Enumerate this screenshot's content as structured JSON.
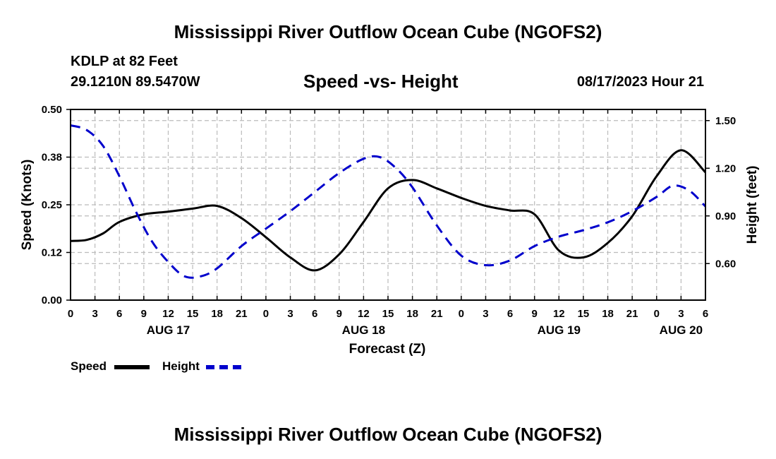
{
  "header": {
    "title": "Mississippi River Outflow Ocean Cube (NGOFS2)",
    "station": "KDLP at 82 Feet",
    "coordinates": "29.1210N  89.5470W",
    "subtitle": "Speed -vs- Height",
    "timestamp": "08/17/2023 Hour 21"
  },
  "footer": {
    "title": "Mississippi River Outflow Ocean Cube (NGOFS2)"
  },
  "legend": {
    "speed_label": "Speed",
    "height_label": "Height",
    "speed_color": "#000000",
    "height_color": "#0000cc"
  },
  "chart_data": {
    "type": "line",
    "title": "Speed -vs- Height",
    "xlabel": "Forecast (Z)",
    "ylabel_left": "Speed (Knots)",
    "ylabel_right": "Height (feet)",
    "x_range": [
      0,
      78
    ],
    "x_tick_labels": [
      "0",
      "3",
      "6",
      "9",
      "12",
      "15",
      "18",
      "21",
      "0",
      "3",
      "6",
      "9",
      "12",
      "15",
      "18",
      "21",
      "0",
      "3",
      "6",
      "9",
      "12",
      "15",
      "18",
      "21",
      "0",
      "3",
      "6"
    ],
    "date_labels": [
      {
        "label": "AUG 17",
        "hour": 12
      },
      {
        "label": "AUG 18",
        "hour": 36
      },
      {
        "label": "AUG 19",
        "hour": 60
      },
      {
        "label": "AUG 20",
        "hour": 75
      }
    ],
    "y_left": {
      "range": [
        0,
        0.5
      ],
      "ticks": [
        0,
        0.125,
        0.25,
        0.375,
        0.5
      ],
      "tick_labels": [
        "0.00",
        "0.12",
        "0.25",
        "0.38",
        "0.50"
      ]
    },
    "y_right": {
      "range": [
        0.37,
        1.57
      ],
      "ticks": [
        0.6,
        0.9,
        1.2,
        1.5
      ],
      "tick_labels": [
        "0.60",
        "0.90",
        "1.20",
        "1.50"
      ]
    },
    "grid": true,
    "series": [
      {
        "name": "Speed",
        "axis": "left",
        "style": "solid",
        "color": "#000000",
        "x": [
          0,
          2,
          4,
          6,
          9,
          12,
          15,
          18,
          21,
          24,
          27,
          30,
          33,
          36,
          39,
          42,
          45,
          48,
          51,
          54,
          57,
          60,
          63,
          66,
          69,
          72,
          75,
          78
        ],
        "y": [
          0.155,
          0.158,
          0.175,
          0.205,
          0.225,
          0.232,
          0.24,
          0.247,
          0.215,
          0.165,
          0.112,
          0.078,
          0.12,
          0.205,
          0.293,
          0.315,
          0.293,
          0.268,
          0.247,
          0.235,
          0.225,
          0.13,
          0.112,
          0.15,
          0.22,
          0.325,
          0.393,
          0.335
        ]
      },
      {
        "name": "Height",
        "axis": "right",
        "style": "dashed",
        "color": "#0000cc",
        "x": [
          0,
          2,
          4,
          6,
          8,
          10,
          12,
          14,
          16,
          18,
          21,
          24,
          27,
          30,
          33,
          36,
          38,
          40,
          42,
          45,
          48,
          51,
          54,
          57,
          60,
          63,
          66,
          69,
          72,
          74,
          76,
          78
        ],
        "y": [
          1.47,
          1.44,
          1.34,
          1.15,
          0.93,
          0.74,
          0.61,
          0.52,
          0.52,
          0.57,
          0.71,
          0.82,
          0.93,
          1.05,
          1.17,
          1.26,
          1.27,
          1.2,
          1.08,
          0.84,
          0.65,
          0.59,
          0.62,
          0.71,
          0.77,
          0.81,
          0.86,
          0.93,
          1.02,
          1.09,
          1.06,
          0.96
        ]
      }
    ]
  }
}
